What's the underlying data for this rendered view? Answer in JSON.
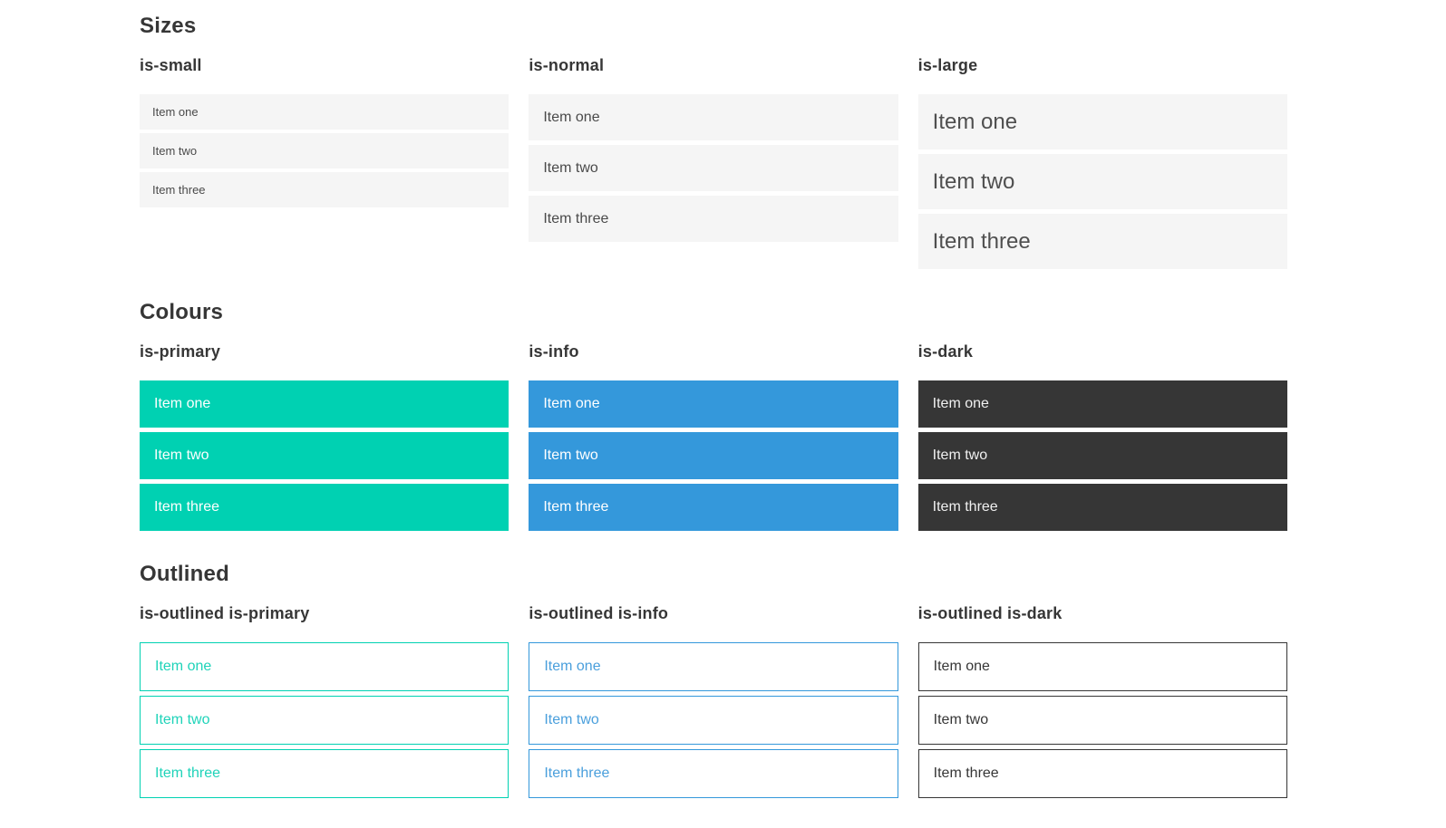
{
  "colors": {
    "primary": "#00d1b2",
    "primary_text": "#1fd3b9",
    "info": "#3498db",
    "info_text": "#4a9fdc",
    "dark": "#363636",
    "dark_item_text": "#f0f0f0",
    "item_bg": "#f5f5f5",
    "item_text": "#4a4a4a",
    "heading_text": "#363636",
    "on_color_text": "#ffffff"
  },
  "sections": [
    {
      "title": "Sizes",
      "groups": [
        {
          "label": "is-small",
          "items": [
            "Item one",
            "Item two",
            "Item three"
          ]
        },
        {
          "label": "is-normal",
          "items": [
            "Item one",
            "Item two",
            "Item three"
          ]
        },
        {
          "label": "is-large",
          "items": [
            "Item one",
            "Item two",
            "Item three"
          ]
        }
      ]
    },
    {
      "title": "Colours",
      "groups": [
        {
          "label": "is-primary",
          "items": [
            "Item one",
            "Item two",
            "Item three"
          ]
        },
        {
          "label": "is-info",
          "items": [
            "Item one",
            "Item two",
            "Item three"
          ]
        },
        {
          "label": "is-dark",
          "items": [
            "Item one",
            "Item two",
            "Item three"
          ]
        }
      ]
    },
    {
      "title": "Outlined",
      "groups": [
        {
          "label": "is-outlined is-primary",
          "items": [
            "Item one",
            "Item two",
            "Item three"
          ]
        },
        {
          "label": "is-outlined is-info",
          "items": [
            "Item one",
            "Item two",
            "Item three"
          ]
        },
        {
          "label": "is-outlined is-dark",
          "items": [
            "Item one",
            "Item two",
            "Item three"
          ]
        }
      ]
    }
  ]
}
